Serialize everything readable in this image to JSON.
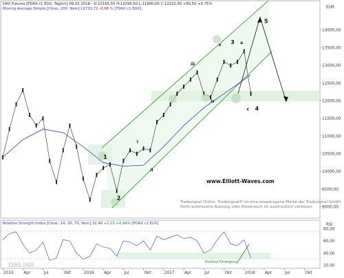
{
  "header": {
    "title_text": "DAX Futures [FDAX c1 EUX, Täglich] 09.02.2018 - O:12165,50 H:12290,50 L:11900,00 C:12222,50 +50,50 +0,75%",
    "ma_label": "Moving Average Simple [Close, 200, Nein]",
    "ma_value": "12733,72",
    "ma_change": "-0,98 %",
    "ma_symbol": "[FDAX c1 EUX]",
    "currency": "EUR",
    "rsi_label": "Relative Strength Index [Close, 14, 30, 70, Nein]",
    "rsi_value": "32,46",
    "rsi_change": "+2,03 +6,94%",
    "rsi_symbol": "[FDAX c1 EUX]",
    "rsi_axis": "RSI"
  },
  "watermark": {
    "url": "www.Elliott-Waves.com",
    "line1": "Tradesignal Online. Tradesignal® ist eine eingetragene Marke der Tradesignal GmbH.",
    "line2": "Nicht autorisierte Nutzung oder Missbrauch ist ausdrücklich verboten.",
    "logo": "ONLINE"
  },
  "annotations": {
    "divergence_label": "Positive Divergenz"
  },
  "colors": {
    "price": "#111111",
    "ma": "#2340d0",
    "channel": "#2aa02a",
    "zone": "#d9efd9",
    "rsi": "#1f3fc8"
  },
  "chart_data": [
    {
      "type": "line",
      "title": "DAX Futures [FDAX c1 EUX, Täglich] 09.02.2018",
      "xlabel": "",
      "ylabel": "EUR",
      "x_ticks": [
        "2015",
        "Apr",
        "Jul",
        "Okt",
        "2016",
        "Apr",
        "Jul",
        "Okt",
        "2017",
        "Apr",
        "Jul",
        "Okt",
        "2018",
        "Apr",
        "Jul",
        "Okt"
      ],
      "y_ticks": [
        "9000,00",
        "9500,00",
        "10000,00",
        "10500,00",
        "11000,00",
        "11500,00",
        "12000,00",
        "12500,00",
        "13000,00",
        "13500,00",
        "14000,00"
      ],
      "ylim": [
        8700,
        14500
      ],
      "xlim": [
        "2015-01",
        "2018-12"
      ],
      "grid": false,
      "series": [
        {
          "name": "DAX Futures",
          "x": [
            "2015-01",
            "2015-02",
            "2015-03",
            "2015-04",
            "2015-05",
            "2015-06",
            "2015-07",
            "2015-08",
            "2015-09",
            "2015-10",
            "2015-11",
            "2015-12",
            "2016-01",
            "2016-02",
            "2016-03",
            "2016-04",
            "2016-05",
            "2016-06",
            "2016-07",
            "2016-08",
            "2016-09",
            "2016-10",
            "2016-11",
            "2016-12",
            "2017-01",
            "2017-02",
            "2017-03",
            "2017-04",
            "2017-05",
            "2017-06",
            "2017-07",
            "2017-08",
            "2017-09",
            "2017-10",
            "2017-11",
            "2017-12",
            "2018-01",
            "2018-02"
          ],
          "values": [
            10400,
            11200,
            11900,
            12300,
            11600,
            11300,
            11500,
            10300,
            9700,
            10600,
            11300,
            10700,
            9800,
            9200,
            9900,
            10100,
            10200,
            9450,
            10300,
            10600,
            10500,
            10650,
            10600,
            11400,
            11600,
            11900,
            12200,
            12400,
            12600,
            12800,
            12200,
            12100,
            12600,
            13100,
            13000,
            13100,
            13400,
            12200
          ]
        },
        {
          "name": "Moving Average Simple [Close, 200, Nein]",
          "x": [
            "2015-01",
            "2015-04",
            "2015-07",
            "2015-10",
            "2016-01",
            "2016-04",
            "2016-07",
            "2016-10",
            "2017-01",
            "2017-04",
            "2017-07",
            "2017-10",
            "2018-01",
            "2018-02"
          ],
          "values": [
            10400,
            10900,
            11200,
            11100,
            10700,
            10250,
            10150,
            10180,
            10700,
            11300,
            11800,
            12200,
            12600,
            12733
          ]
        }
      ],
      "annotations": [
        {
          "label": "1",
          "x": "2016-04",
          "y": 10350
        },
        {
          "label": "2",
          "x": "2016-06",
          "y": 9200
        },
        {
          "label": "i",
          "x": "2016-09",
          "y": 10800
        },
        {
          "label": "ii",
          "x": "2016-11",
          "y": 10000
        },
        {
          "label": "iii",
          "x": "2017-05",
          "y": 13000
        },
        {
          "label": "iv",
          "x": "2017-08",
          "y": 11950
        },
        {
          "label": "v",
          "x": "2017-10",
          "y": 13550
        },
        {
          "label": "3",
          "x": "2017-11",
          "y": 13600
        },
        {
          "label": "a",
          "x": "2017-12",
          "y": 13600
        },
        {
          "label": "c",
          "x": "2018-02",
          "y": 11800
        },
        {
          "label": "4",
          "x": "2018-02",
          "y": 11800
        },
        {
          "label": "5",
          "x": "2018-04",
          "y": 14200
        }
      ]
    },
    {
      "type": "line",
      "title": "Relative Strength Index [Close, 14, 30, 70, Nein]",
      "ylabel": "RSI",
      "y_ticks": [
        "20,00",
        "40,00",
        "60,00",
        "80,00"
      ],
      "ylim": [
        15,
        85
      ],
      "series": [
        {
          "name": "Relative Strength Index [Close, 14, 30, 70, Nein]",
          "x": [
            "2015-01",
            "2015-02",
            "2015-03",
            "2015-04",
            "2015-05",
            "2015-06",
            "2015-07",
            "2015-08",
            "2015-09",
            "2015-10",
            "2015-11",
            "2015-12",
            "2016-01",
            "2016-02",
            "2016-03",
            "2016-04",
            "2016-05",
            "2016-06",
            "2016-07",
            "2016-08",
            "2016-09",
            "2016-10",
            "2016-11",
            "2016-12",
            "2017-01",
            "2017-02",
            "2017-03",
            "2017-04",
            "2017-05",
            "2017-06",
            "2017-07",
            "2017-08",
            "2017-09",
            "2017-10",
            "2017-11",
            "2017-12",
            "2018-01",
            "2018-02"
          ],
          "values": [
            62,
            72,
            75,
            55,
            40,
            45,
            58,
            28,
            32,
            62,
            60,
            40,
            30,
            35,
            55,
            50,
            48,
            35,
            60,
            58,
            52,
            60,
            45,
            68,
            62,
            66,
            70,
            64,
            66,
            60,
            40,
            45,
            62,
            75,
            55,
            52,
            62,
            32
          ]
        }
      ],
      "bands": [
        30,
        70
      ]
    }
  ]
}
